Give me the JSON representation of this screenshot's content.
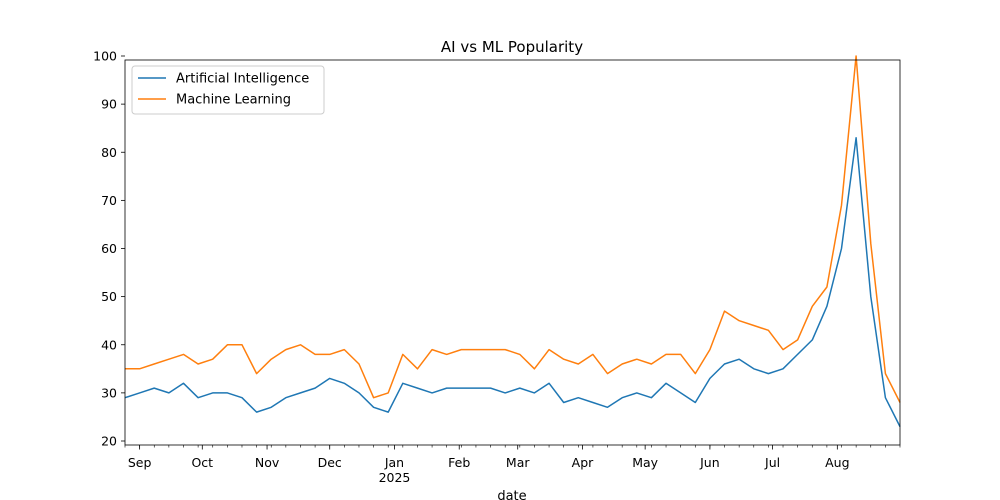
{
  "chart_data": {
    "type": "line",
    "title": "AI vs ML Popularity",
    "xlabel": "date",
    "ylabel": "",
    "ylim": [
      20,
      100
    ],
    "yticks": [
      20,
      30,
      40,
      50,
      60,
      70,
      80,
      90,
      100
    ],
    "grid": false,
    "legend_position": "top-left",
    "x_start": "2024-09-01",
    "x_end": "2025-08-31",
    "x_tick_labels": [
      {
        "label": "Sep",
        "date": "2024-09-01"
      },
      {
        "label": "Oct",
        "date": "2024-10-01"
      },
      {
        "label": "Nov",
        "date": "2024-11-01"
      },
      {
        "label": "Dec",
        "date": "2024-12-01"
      },
      {
        "label": "Jan",
        "sub": "2025",
        "date": "2025-01-01"
      },
      {
        "label": "Feb",
        "date": "2025-02-01"
      },
      {
        "label": "Mar",
        "date": "2025-03-01"
      },
      {
        "label": "Apr",
        "date": "2025-04-01"
      },
      {
        "label": "May",
        "date": "2025-05-01"
      },
      {
        "label": "Jun",
        "date": "2025-06-01"
      },
      {
        "label": "Jul",
        "date": "2025-07-01"
      },
      {
        "label": "Aug",
        "date": "2025-08-01"
      }
    ],
    "x": [
      "2024-08-25",
      "2024-09-01",
      "2024-09-08",
      "2024-09-15",
      "2024-09-22",
      "2024-09-29",
      "2024-10-06",
      "2024-10-13",
      "2024-10-20",
      "2024-10-27",
      "2024-11-03",
      "2024-11-10",
      "2024-11-17",
      "2024-11-24",
      "2024-12-01",
      "2024-12-08",
      "2024-12-15",
      "2024-12-22",
      "2024-12-29",
      "2025-01-05",
      "2025-01-12",
      "2025-01-19",
      "2025-01-26",
      "2025-02-02",
      "2025-02-09",
      "2025-02-16",
      "2025-02-23",
      "2025-03-02",
      "2025-03-09",
      "2025-03-16",
      "2025-03-23",
      "2025-03-30",
      "2025-04-06",
      "2025-04-13",
      "2025-04-20",
      "2025-04-27",
      "2025-05-04",
      "2025-05-11",
      "2025-05-18",
      "2025-05-25",
      "2025-06-01",
      "2025-06-08",
      "2025-06-15",
      "2025-06-22",
      "2025-06-29",
      "2025-07-06",
      "2025-07-13",
      "2025-07-20",
      "2025-07-27",
      "2025-08-03",
      "2025-08-10",
      "2025-08-17",
      "2025-08-24",
      "2025-08-31"
    ],
    "series": [
      {
        "name": "Artificial Intelligence",
        "color": "#1f77b4",
        "values": [
          29,
          30,
          31,
          30,
          32,
          29,
          30,
          30,
          29,
          26,
          27,
          29,
          30,
          31,
          33,
          32,
          30,
          27,
          26,
          32,
          31,
          30,
          31,
          31,
          31,
          31,
          30,
          31,
          30,
          32,
          28,
          29,
          28,
          27,
          29,
          30,
          29,
          32,
          30,
          28,
          33,
          36,
          37,
          35,
          34,
          35,
          38,
          41,
          48,
          60,
          83,
          50,
          29,
          23
        ]
      },
      {
        "name": "Machine Learning",
        "color": "#ff7f0e",
        "values": [
          35,
          35,
          36,
          37,
          38,
          36,
          37,
          40,
          40,
          34,
          37,
          39,
          40,
          38,
          38,
          39,
          36,
          29,
          30,
          38,
          35,
          39,
          38,
          39,
          39,
          39,
          39,
          38,
          35,
          39,
          37,
          36,
          38,
          34,
          36,
          37,
          36,
          38,
          38,
          34,
          39,
          47,
          45,
          44,
          43,
          39,
          41,
          48,
          52,
          69,
          100,
          61,
          34,
          28
        ]
      }
    ]
  }
}
